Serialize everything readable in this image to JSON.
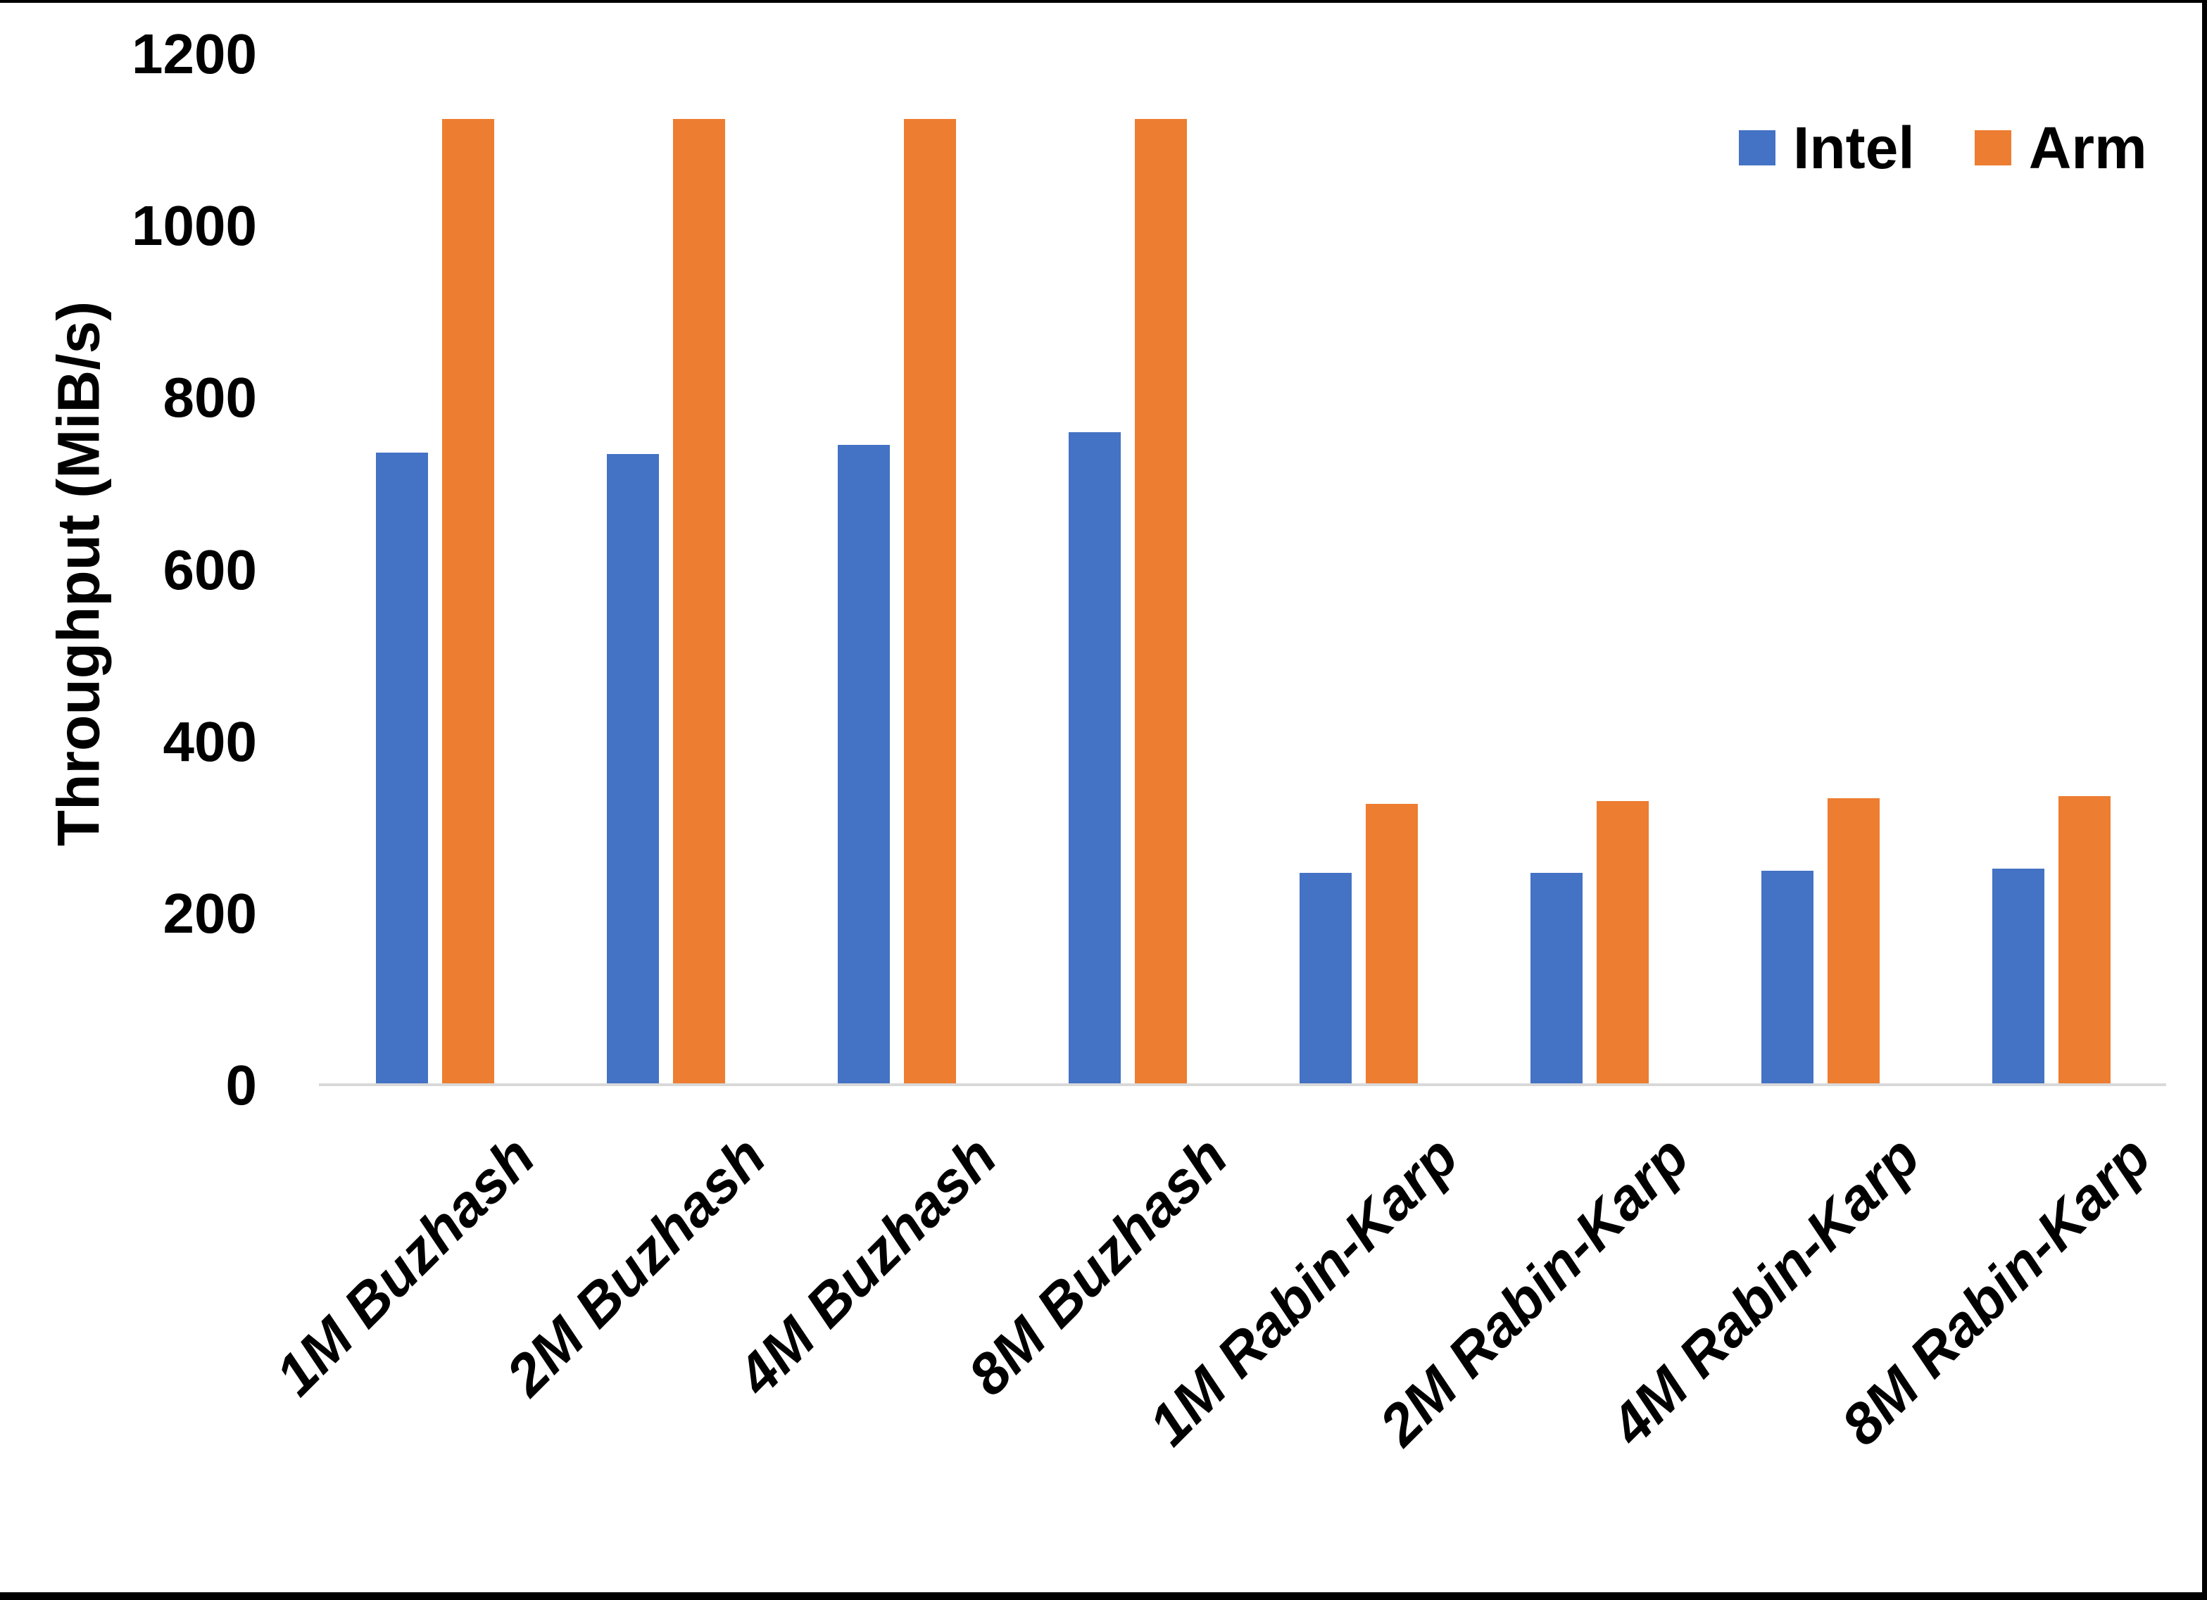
{
  "chart_data": {
    "type": "bar",
    "title": "",
    "categories": [
      "1M Buzhash",
      "2M Buzhash",
      "4M Buzhash",
      "8M Buzhash",
      "1M Rabin-Karp",
      "2M Rabin-Karp",
      "4M Rabin-Karp",
      "8M Rabin-Karp"
    ],
    "series": [
      {
        "name": "Intel",
        "color": "#4472C4",
        "values": [
          736,
          735,
          745,
          760,
          247,
          247,
          250,
          252
        ]
      },
      {
        "name": "Arm",
        "color": "#ED7D31",
        "values": [
          1125,
          1125,
          1125,
          1125,
          328,
          331,
          334,
          337
        ]
      }
    ],
    "xlabel": "",
    "ylabel": "Throughput (MiB/s)",
    "ylim": [
      0,
      1200
    ],
    "ytick_step": 200,
    "yticks": [
      0,
      200,
      400,
      600,
      800,
      1000,
      1200
    ],
    "grid": false,
    "legend_position": "top-right",
    "axis_line_color": "#D9D9D9",
    "text_color": "#000000",
    "background_color": "#FFFFFF"
  }
}
